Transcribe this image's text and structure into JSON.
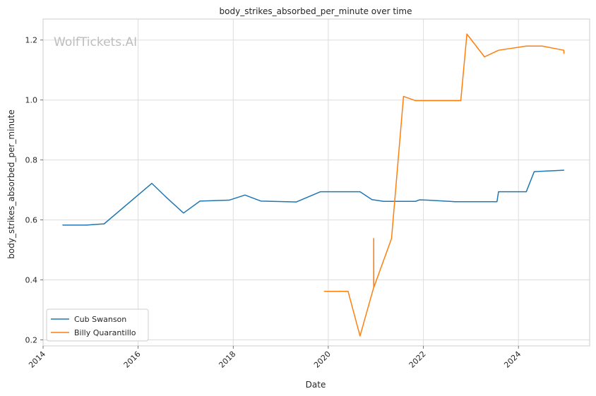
{
  "chart_data": {
    "type": "line",
    "title": "body_strikes_absorbed_per_minute over time",
    "xlabel": "Date",
    "ylabel": "body_strikes_absorbed_per_minute",
    "watermark": "WolfTickets.AI",
    "xlim": [
      "2014-01-01",
      "2025-07-01"
    ],
    "ylim": [
      0.18,
      1.27
    ],
    "x_ticks": [
      "2014",
      "2016",
      "2018",
      "2020",
      "2022",
      "2024"
    ],
    "y_ticks": [
      "0.2",
      "0.4",
      "0.6",
      "0.8",
      "1.0",
      "1.2"
    ],
    "y_tick_values": [
      0.2,
      0.4,
      0.6,
      0.8,
      1.0,
      1.2
    ],
    "grid": true,
    "legend_position": "lower-left",
    "series": [
      {
        "name": "Cub Swanson",
        "color": "#1f77b4",
        "x": [
          "2014-06-01",
          "2014-12-01",
          "2015-04-15",
          "2016-04-15",
          "2016-08-01",
          "2016-12-15",
          "2017-04-20",
          "2017-12-01",
          "2018-04-01",
          "2018-08-01",
          "2019-05-01",
          "2019-11-01",
          "2020-09-01",
          "2020-12-01",
          "2021-03-01",
          "2021-11-01",
          "2021-12-01",
          "2022-02-01",
          "2022-09-01",
          "2023-07-20",
          "2023-08-01",
          "2024-03-01",
          "2024-05-01",
          "2024-12-15"
        ],
        "y": [
          0.583,
          0.583,
          0.587,
          0.722,
          0.677,
          0.623,
          0.663,
          0.666,
          0.683,
          0.663,
          0.66,
          0.694,
          0.694,
          0.668,
          0.662,
          0.662,
          0.667,
          0.666,
          0.661,
          0.661,
          0.694,
          0.694,
          0.761,
          0.766
        ]
      },
      {
        "name": "Billy Quarantillo",
        "color": "#ff7f0e",
        "x": [
          "2019-12-01",
          "2020-06-01",
          "2020-09-01",
          "2020-12-15",
          "2020-12-15",
          "2020-12-16",
          "2021-05-01",
          "2021-08-01",
          "2021-11-01",
          "2022-10-15",
          "2022-12-01",
          "2023-04-15",
          "2023-08-01",
          "2024-03-01",
          "2024-07-01",
          "2024-12-15",
          "2024-12-16"
        ],
        "y": [
          0.362,
          0.362,
          0.213,
          0.375,
          0.538,
          0.375,
          0.538,
          1.012,
          0.998,
          0.998,
          1.22,
          1.144,
          1.166,
          1.18,
          1.18,
          1.166,
          1.155
        ]
      }
    ]
  }
}
